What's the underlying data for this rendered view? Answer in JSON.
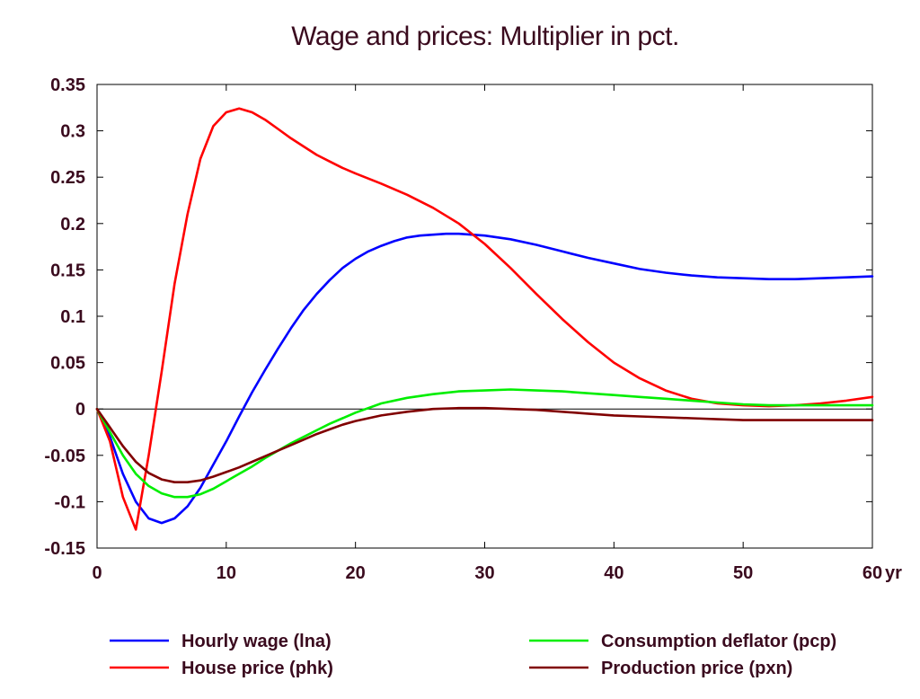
{
  "chart_data": {
    "type": "line",
    "title": "Wage and prices: Multiplier in pct.",
    "x_unit_label": "yr",
    "xlim": [
      0,
      60
    ],
    "ylim": [
      -0.15,
      0.35
    ],
    "x_ticks": [
      0,
      10,
      20,
      30,
      40,
      50,
      60
    ],
    "x_tick_labels": [
      "0",
      "10",
      "20",
      "30",
      "40",
      "50",
      "60"
    ],
    "y_ticks": [
      -0.15,
      -0.1,
      -0.05,
      0,
      0.05,
      0.1,
      0.15,
      0.2,
      0.25,
      0.3,
      0.35
    ],
    "y_tick_labels": [
      "-0.15",
      "-0.1",
      "-0.05",
      "0",
      "0.05",
      "0.1",
      "0.15",
      "0.2",
      "0.25",
      "0.3",
      "0.35"
    ],
    "zero_line": true,
    "grid": false,
    "legend_position": "bottom",
    "series": [
      {
        "name": "Hourly wage (lna)",
        "color": "#0000ff",
        "points": [
          [
            0,
            0
          ],
          [
            1,
            -0.03
          ],
          [
            2,
            -0.07
          ],
          [
            3,
            -0.1
          ],
          [
            4,
            -0.118
          ],
          [
            5,
            -0.123
          ],
          [
            6,
            -0.118
          ],
          [
            7,
            -0.105
          ],
          [
            8,
            -0.085
          ],
          [
            9,
            -0.06
          ],
          [
            10,
            -0.035
          ],
          [
            11,
            -0.008
          ],
          [
            12,
            0.018
          ],
          [
            13,
            0.042
          ],
          [
            14,
            0.065
          ],
          [
            15,
            0.087
          ],
          [
            16,
            0.107
          ],
          [
            17,
            0.124
          ],
          [
            18,
            0.139
          ],
          [
            19,
            0.152
          ],
          [
            20,
            0.162
          ],
          [
            21,
            0.17
          ],
          [
            22,
            0.176
          ],
          [
            23,
            0.181
          ],
          [
            24,
            0.185
          ],
          [
            25,
            0.187
          ],
          [
            26,
            0.188
          ],
          [
            27,
            0.189
          ],
          [
            28,
            0.189
          ],
          [
            29,
            0.188
          ],
          [
            30,
            0.187
          ],
          [
            32,
            0.183
          ],
          [
            34,
            0.177
          ],
          [
            36,
            0.17
          ],
          [
            38,
            0.163
          ],
          [
            40,
            0.157
          ],
          [
            42,
            0.151
          ],
          [
            44,
            0.147
          ],
          [
            46,
            0.144
          ],
          [
            48,
            0.142
          ],
          [
            50,
            0.141
          ],
          [
            52,
            0.14
          ],
          [
            54,
            0.14
          ],
          [
            56,
            0.141
          ],
          [
            58,
            0.142
          ],
          [
            60,
            0.143
          ]
        ]
      },
      {
        "name": "House price (phk)",
        "color": "#ff0000",
        "points": [
          [
            0,
            0
          ],
          [
            1,
            -0.035
          ],
          [
            2,
            -0.095
          ],
          [
            3,
            -0.13
          ],
          [
            4,
            -0.05
          ],
          [
            5,
            0.04
          ],
          [
            6,
            0.135
          ],
          [
            7,
            0.21
          ],
          [
            8,
            0.27
          ],
          [
            9,
            0.305
          ],
          [
            10,
            0.32
          ],
          [
            11,
            0.324
          ],
          [
            12,
            0.32
          ],
          [
            13,
            0.312
          ],
          [
            14,
            0.302
          ],
          [
            15,
            0.292
          ],
          [
            16,
            0.283
          ],
          [
            17,
            0.274
          ],
          [
            18,
            0.267
          ],
          [
            19,
            0.26
          ],
          [
            20,
            0.254
          ],
          [
            22,
            0.243
          ],
          [
            24,
            0.231
          ],
          [
            26,
            0.217
          ],
          [
            28,
            0.2
          ],
          [
            30,
            0.178
          ],
          [
            32,
            0.152
          ],
          [
            34,
            0.124
          ],
          [
            36,
            0.097
          ],
          [
            38,
            0.072
          ],
          [
            40,
            0.05
          ],
          [
            42,
            0.033
          ],
          [
            44,
            0.02
          ],
          [
            46,
            0.011
          ],
          [
            48,
            0.006
          ],
          [
            50,
            0.004
          ],
          [
            52,
            0.003
          ],
          [
            54,
            0.004
          ],
          [
            56,
            0.006
          ],
          [
            58,
            0.009
          ],
          [
            60,
            0.013
          ]
        ]
      },
      {
        "name": "Consumption deflator (pcp)",
        "color": "#00ee00",
        "points": [
          [
            0,
            0
          ],
          [
            1,
            -0.025
          ],
          [
            2,
            -0.05
          ],
          [
            3,
            -0.07
          ],
          [
            4,
            -0.083
          ],
          [
            5,
            -0.091
          ],
          [
            6,
            -0.095
          ],
          [
            7,
            -0.095
          ],
          [
            8,
            -0.092
          ],
          [
            9,
            -0.086
          ],
          [
            10,
            -0.078
          ],
          [
            11,
            -0.07
          ],
          [
            12,
            -0.062
          ],
          [
            13,
            -0.053
          ],
          [
            14,
            -0.045
          ],
          [
            15,
            -0.037
          ],
          [
            16,
            -0.03
          ],
          [
            17,
            -0.023
          ],
          [
            18,
            -0.016
          ],
          [
            19,
            -0.01
          ],
          [
            20,
            -0.004
          ],
          [
            22,
            0.006
          ],
          [
            24,
            0.012
          ],
          [
            26,
            0.016
          ],
          [
            28,
            0.019
          ],
          [
            30,
            0.02
          ],
          [
            32,
            0.021
          ],
          [
            34,
            0.02
          ],
          [
            36,
            0.019
          ],
          [
            38,
            0.017
          ],
          [
            40,
            0.015
          ],
          [
            42,
            0.013
          ],
          [
            44,
            0.011
          ],
          [
            46,
            0.009
          ],
          [
            48,
            0.007
          ],
          [
            50,
            0.005
          ],
          [
            52,
            0.004
          ],
          [
            54,
            0.004
          ],
          [
            56,
            0.004
          ],
          [
            58,
            0.004
          ],
          [
            60,
            0.004
          ]
        ]
      },
      {
        "name": "Production price (pxn)",
        "color": "#800000",
        "points": [
          [
            0,
            0
          ],
          [
            1,
            -0.02
          ],
          [
            2,
            -0.04
          ],
          [
            3,
            -0.057
          ],
          [
            4,
            -0.069
          ],
          [
            5,
            -0.076
          ],
          [
            6,
            -0.079
          ],
          [
            7,
            -0.079
          ],
          [
            8,
            -0.077
          ],
          [
            9,
            -0.073
          ],
          [
            10,
            -0.068
          ],
          [
            11,
            -0.063
          ],
          [
            12,
            -0.057
          ],
          [
            13,
            -0.051
          ],
          [
            14,
            -0.045
          ],
          [
            15,
            -0.039
          ],
          [
            16,
            -0.033
          ],
          [
            17,
            -0.027
          ],
          [
            18,
            -0.022
          ],
          [
            19,
            -0.017
          ],
          [
            20,
            -0.013
          ],
          [
            22,
            -0.007
          ],
          [
            24,
            -0.003
          ],
          [
            26,
            0.0
          ],
          [
            28,
            0.001
          ],
          [
            30,
            0.001
          ],
          [
            32,
            0.0
          ],
          [
            34,
            -0.001
          ],
          [
            36,
            -0.003
          ],
          [
            38,
            -0.005
          ],
          [
            40,
            -0.007
          ],
          [
            42,
            -0.008
          ],
          [
            44,
            -0.009
          ],
          [
            46,
            -0.01
          ],
          [
            48,
            -0.011
          ],
          [
            50,
            -0.012
          ],
          [
            52,
            -0.012
          ],
          [
            54,
            -0.012
          ],
          [
            56,
            -0.012
          ],
          [
            58,
            -0.012
          ],
          [
            60,
            -0.012
          ]
        ]
      }
    ]
  }
}
